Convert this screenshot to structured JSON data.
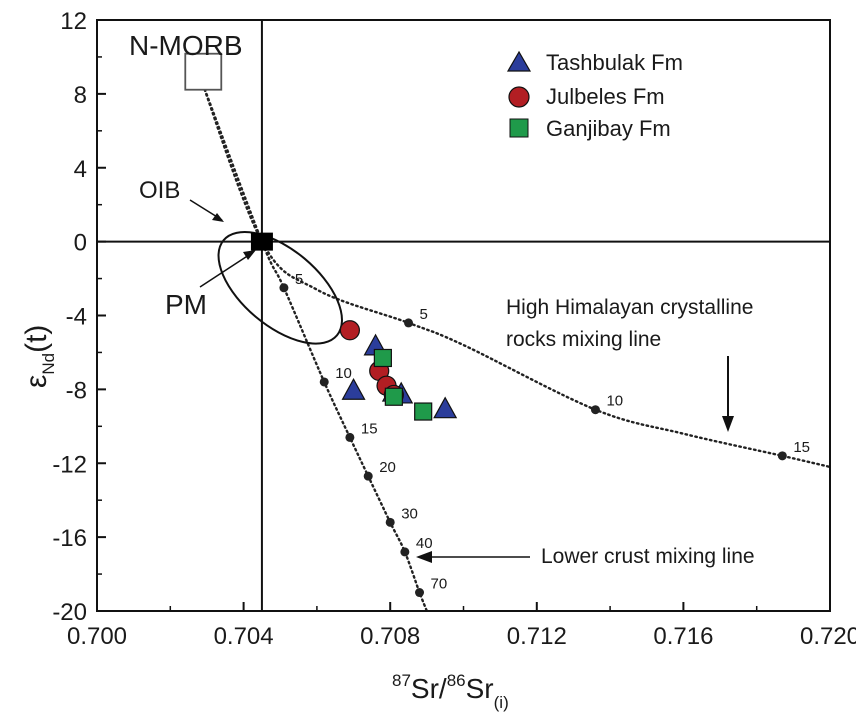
{
  "chart_data": {
    "type": "scatter",
    "xlabel": {
      "pre": "87",
      "mid": "Sr/",
      "pre2": "86",
      "main": "Sr",
      "sub": "(i)"
    },
    "ylabel": {
      "main": "ε",
      "sub": "Nd",
      "post": "(t)"
    },
    "xlim": [
      0.7,
      0.72
    ],
    "ylim": [
      -20,
      12
    ],
    "x_ticks": [
      {
        "value": 0.7,
        "label": "0.700"
      },
      {
        "value": 0.704,
        "label": "0.704"
      },
      {
        "value": 0.708,
        "label": "0.708"
      },
      {
        "value": 0.712,
        "label": "0.712"
      },
      {
        "value": 0.716,
        "label": "0.716"
      },
      {
        "value": 0.72,
        "label": "0.720"
      }
    ],
    "y_ticks": [
      {
        "value": 12,
        "label": "12"
      },
      {
        "value": 8,
        "label": "8"
      },
      {
        "value": 4,
        "label": "4"
      },
      {
        "value": 0,
        "label": "0"
      },
      {
        "value": -4,
        "label": "-4"
      },
      {
        "value": -8,
        "label": "-8"
      },
      {
        "value": -12,
        "label": "-12"
      },
      {
        "value": -16,
        "label": "-16"
      },
      {
        "value": -20,
        "label": "-20"
      }
    ],
    "grid": false,
    "legend_position": "top-right",
    "reference_lines": {
      "x": 0.7045,
      "y": 0
    },
    "series": [
      {
        "name": "Tashbulak Fm",
        "marker": "triangle",
        "color": "#2b3d9b",
        "points": [
          [
            0.7076,
            -5.7
          ],
          [
            0.707,
            -8.1
          ],
          [
            0.7081,
            -8.2
          ],
          [
            0.7083,
            -8.3
          ],
          [
            0.7095,
            -9.1
          ]
        ]
      },
      {
        "name": "Julbeles Fm",
        "marker": "circle",
        "color": "#b21e23",
        "points": [
          [
            0.7069,
            -4.8
          ],
          [
            0.7077,
            -7.0
          ],
          [
            0.7079,
            -7.8
          ],
          [
            0.7081,
            -8.3
          ]
        ]
      },
      {
        "name": "Ganjibay Fm",
        "marker": "square",
        "color": "#1f9a4a",
        "points": [
          [
            0.7078,
            -6.3
          ],
          [
            0.7081,
            -8.4
          ],
          [
            0.7089,
            -9.2
          ]
        ]
      }
    ],
    "reservoirs": [
      {
        "label": "N-MORB",
        "x": 0.7029,
        "y": 9.2
      },
      {
        "label": "PM",
        "x": 0.7045,
        "y": 0
      },
      {
        "label": "OIB",
        "x": 0.705,
        "y": -2.5
      }
    ],
    "mixing_lines": [
      {
        "label_lines": [
          "High Himalayan crystalline",
          "rocks mixing line"
        ],
        "curve": [
          [
            0.7028,
            9.0
          ],
          [
            0.7045,
            0
          ],
          [
            0.706,
            -2.6
          ],
          [
            0.7085,
            -4.4
          ],
          [
            0.71,
            -5.6
          ],
          [
            0.7136,
            -9.1
          ],
          [
            0.716,
            -10.4
          ],
          [
            0.7187,
            -11.6
          ],
          [
            0.72,
            -12.2
          ]
        ],
        "ticks": [
          {
            "x": 0.7085,
            "y": -4.4,
            "label": "5"
          },
          {
            "x": 0.7136,
            "y": -9.1,
            "label": "10"
          },
          {
            "x": 0.7187,
            "y": -11.6,
            "label": "15"
          }
        ]
      },
      {
        "label_lines": [
          "Lower crust mixing line"
        ],
        "curve": [
          [
            0.7028,
            9.0
          ],
          [
            0.7045,
            0
          ],
          [
            0.7051,
            -2.5
          ],
          [
            0.7062,
            -7.6
          ],
          [
            0.7069,
            -10.6
          ],
          [
            0.7074,
            -12.7
          ],
          [
            0.708,
            -15.2
          ],
          [
            0.7084,
            -16.8
          ],
          [
            0.7088,
            -19.0
          ],
          [
            0.709,
            -20.0
          ]
        ],
        "ticks": [
          {
            "x": 0.7051,
            "y": -2.5,
            "label": "5"
          },
          {
            "x": 0.7062,
            "y": -7.6,
            "label": "10"
          },
          {
            "x": 0.7069,
            "y": -10.6,
            "label": "15"
          },
          {
            "x": 0.7074,
            "y": -12.7,
            "label": "20"
          },
          {
            "x": 0.708,
            "y": -15.2,
            "label": "30"
          },
          {
            "x": 0.7084,
            "y": -16.8,
            "label": "40"
          },
          {
            "x": 0.7088,
            "y": -19.0,
            "label": "70"
          }
        ]
      }
    ]
  }
}
